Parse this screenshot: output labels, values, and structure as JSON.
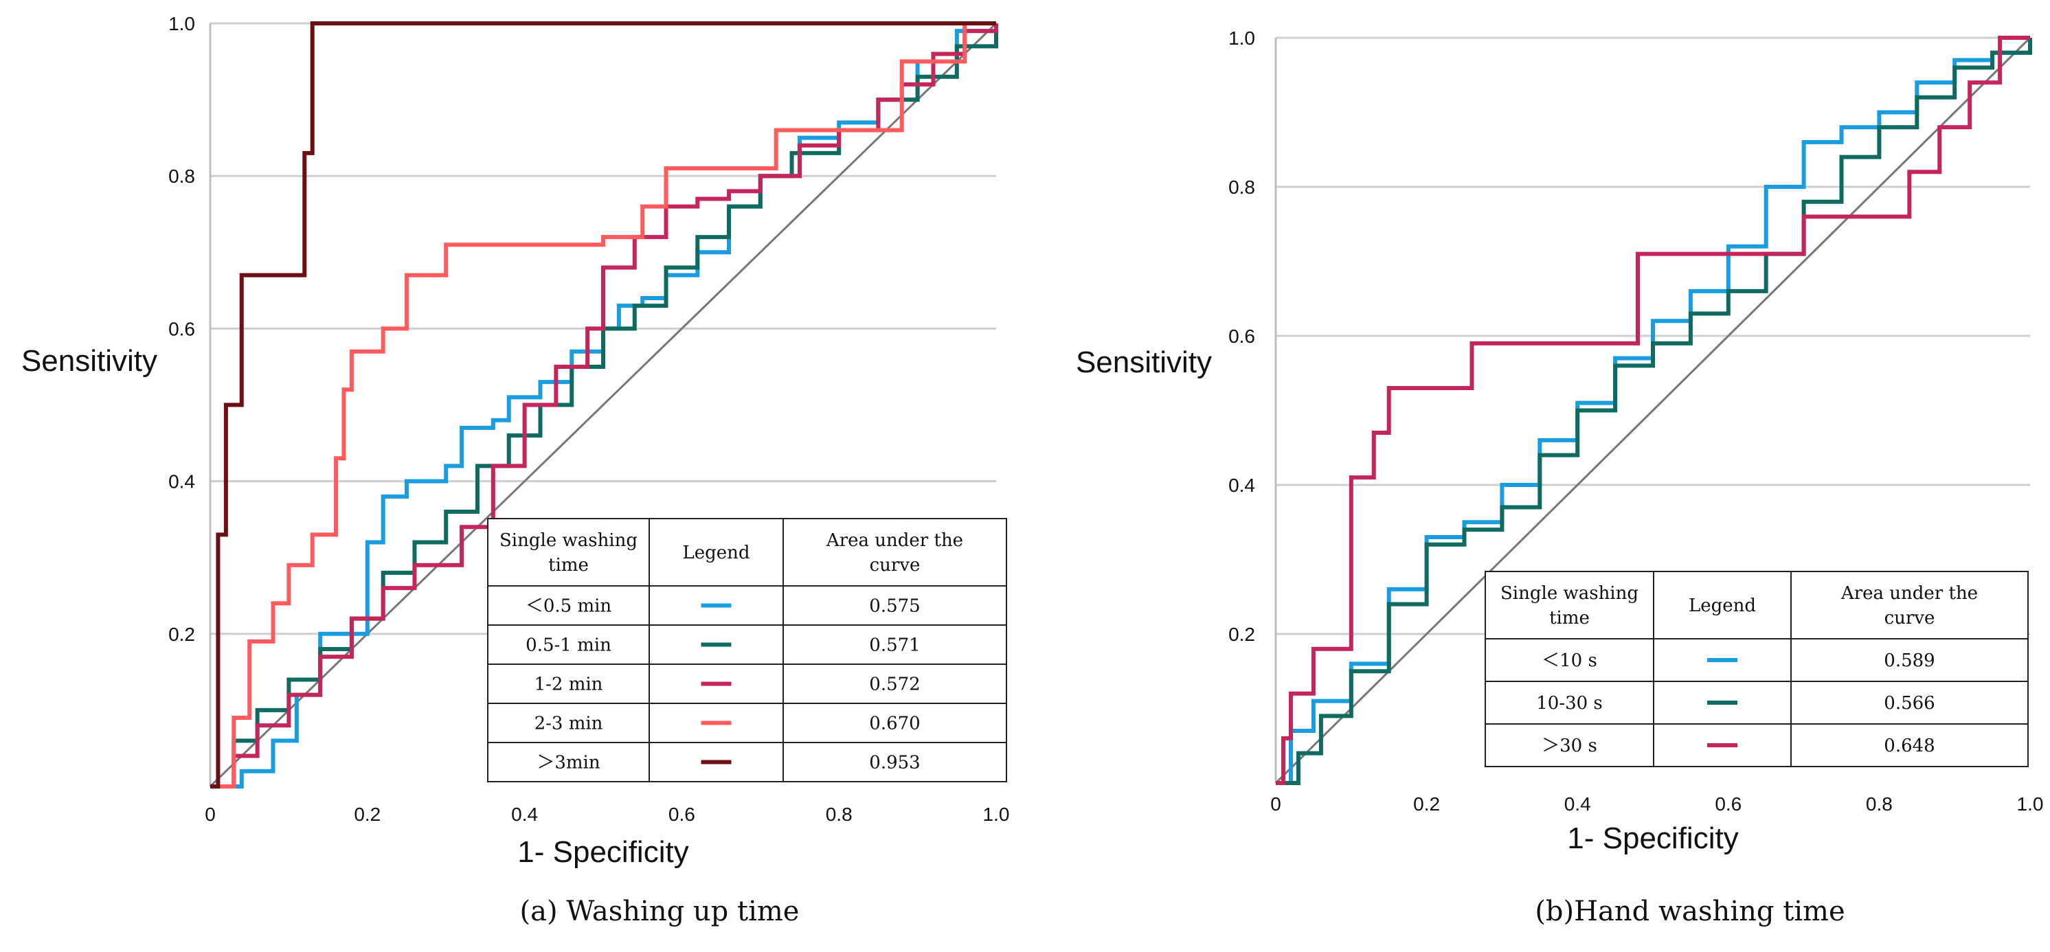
{
  "chart_data": [
    {
      "type": "line",
      "caption": "(a) Washing up time",
      "xlabel": "1- Specificity",
      "ylabel": "Sensitivity",
      "xlim": [
        0,
        1
      ],
      "ylim": [
        0,
        1
      ],
      "xticks": [
        "0",
        "0.2",
        "0.4",
        "0.6",
        "0.8",
        "1.0"
      ],
      "yticks": [
        "0.2",
        "0.4",
        "0.6",
        "0.8",
        "1.0"
      ],
      "table": {
        "headers": [
          "Single washing time",
          "Legend",
          "Area under the curve"
        ],
        "rows": [
          {
            "label": "＜0.5 min",
            "auc": "0.575"
          },
          {
            "label": "0.5-1 min",
            "auc": "0.571"
          },
          {
            "label": "1-2 min",
            "auc": "0.572"
          },
          {
            "label": "2-3 min",
            "auc": "0.670"
          },
          {
            "label": "＞3min",
            "auc": "0.953"
          }
        ]
      },
      "series": [
        {
          "name": "<0.5 min",
          "color": "#1a9de0",
          "auc": 0.575,
          "x": [
            0,
            0.04,
            0.08,
            0.11,
            0.14,
            0.2,
            0.22,
            0.25,
            0.3,
            0.32,
            0.36,
            0.38,
            0.42,
            0.46,
            0.5,
            0.52,
            0.55,
            0.58,
            0.62,
            0.66,
            0.7,
            0.75,
            0.8,
            0.85,
            0.9,
            0.95,
            1.0
          ],
          "y": [
            0,
            0.02,
            0.06,
            0.12,
            0.2,
            0.32,
            0.38,
            0.4,
            0.42,
            0.47,
            0.48,
            0.51,
            0.53,
            0.57,
            0.6,
            0.63,
            0.64,
            0.67,
            0.7,
            0.76,
            0.8,
            0.85,
            0.87,
            0.9,
            0.95,
            0.99,
            1.0
          ]
        },
        {
          "name": "0.5-1 min",
          "color": "#0f6b60",
          "auc": 0.571,
          "x": [
            0,
            0.03,
            0.06,
            0.1,
            0.14,
            0.18,
            0.22,
            0.26,
            0.3,
            0.34,
            0.38,
            0.42,
            0.46,
            0.5,
            0.54,
            0.58,
            0.62,
            0.66,
            0.7,
            0.74,
            0.8,
            0.85,
            0.9,
            0.95,
            1.0
          ],
          "y": [
            0,
            0.06,
            0.1,
            0.14,
            0.18,
            0.22,
            0.28,
            0.32,
            0.36,
            0.42,
            0.46,
            0.5,
            0.55,
            0.6,
            0.63,
            0.68,
            0.72,
            0.76,
            0.8,
            0.83,
            0.86,
            0.9,
            0.93,
            0.97,
            1.0
          ]
        },
        {
          "name": "1-2 min",
          "color": "#c4265a",
          "auc": 0.572,
          "x": [
            0,
            0.03,
            0.06,
            0.1,
            0.14,
            0.18,
            0.22,
            0.26,
            0.3,
            0.32,
            0.36,
            0.4,
            0.44,
            0.48,
            0.5,
            0.54,
            0.58,
            0.62,
            0.66,
            0.7,
            0.75,
            0.8,
            0.85,
            0.88,
            0.92,
            0.96,
            1.0
          ],
          "y": [
            0,
            0.04,
            0.08,
            0.12,
            0.17,
            0.22,
            0.26,
            0.29,
            0.29,
            0.34,
            0.42,
            0.5,
            0.55,
            0.6,
            0.68,
            0.72,
            0.76,
            0.77,
            0.78,
            0.8,
            0.84,
            0.86,
            0.9,
            0.92,
            0.96,
            0.99,
            1.0
          ]
        },
        {
          "name": "2-3 min",
          "color": "#ff5a5e",
          "auc": 0.67,
          "x": [
            0,
            0.03,
            0.05,
            0.08,
            0.1,
            0.13,
            0.16,
            0.17,
            0.18,
            0.22,
            0.25,
            0.27,
            0.3,
            0.35,
            0.4,
            0.48,
            0.5,
            0.55,
            0.58,
            0.62,
            0.66,
            0.72,
            0.8,
            0.88,
            0.92,
            0.96,
            1.0
          ],
          "y": [
            0,
            0.09,
            0.19,
            0.24,
            0.29,
            0.33,
            0.43,
            0.52,
            0.57,
            0.6,
            0.67,
            0.67,
            0.71,
            0.71,
            0.71,
            0.71,
            0.72,
            0.76,
            0.81,
            0.81,
            0.81,
            0.86,
            0.86,
            0.95,
            0.95,
            1.0,
            1.0
          ]
        },
        {
          "name": ">3min",
          "color": "#6b0f12",
          "auc": 0.953,
          "x": [
            0,
            0.01,
            0.01,
            0.02,
            0.03,
            0.04,
            0.06,
            0.08,
            0.1,
            0.12,
            0.12,
            0.13,
            0.13,
            0.2,
            0.4,
            0.6,
            0.8,
            1.0
          ],
          "y": [
            0,
            0.17,
            0.33,
            0.5,
            0.5,
            0.67,
            0.67,
            0.67,
            0.67,
            0.67,
            0.83,
            0.83,
            1.0,
            1.0,
            1.0,
            1.0,
            1.0,
            1.0
          ]
        }
      ]
    },
    {
      "type": "line",
      "caption": "(b)Hand washing time",
      "xlabel": "1- Specificity",
      "ylabel": "Sensitivity",
      "xlim": [
        0,
        1
      ],
      "ylim": [
        0,
        1
      ],
      "xticks": [
        "0",
        "0.2",
        "0.4",
        "0.6",
        "0.8",
        "1.0"
      ],
      "yticks": [
        "0.2",
        "0.4",
        "0.6",
        "0.8",
        "1.0"
      ],
      "table": {
        "headers": [
          "Single washing time",
          "Legend",
          "Area under the curve"
        ],
        "rows": [
          {
            "label": "＜10 s",
            "auc": "0.589"
          },
          {
            "label": "10-30 s",
            "auc": "0.566"
          },
          {
            "label": "＞30 s",
            "auc": "0.648"
          }
        ]
      },
      "series": [
        {
          "name": "<10 s",
          "color": "#1a9de0",
          "auc": 0.589,
          "x": [
            0,
            0.02,
            0.05,
            0.1,
            0.15,
            0.2,
            0.25,
            0.3,
            0.35,
            0.4,
            0.45,
            0.5,
            0.55,
            0.6,
            0.65,
            0.7,
            0.75,
            0.8,
            0.85,
            0.9,
            0.95,
            1.0
          ],
          "y": [
            0,
            0.07,
            0.11,
            0.16,
            0.26,
            0.33,
            0.35,
            0.4,
            0.46,
            0.51,
            0.57,
            0.62,
            0.66,
            0.72,
            0.8,
            0.86,
            0.88,
            0.9,
            0.94,
            0.97,
            0.98,
            1.0
          ]
        },
        {
          "name": "10-30 s",
          "color": "#0f6b60",
          "auc": 0.566,
          "x": [
            0,
            0.03,
            0.06,
            0.1,
            0.15,
            0.2,
            0.25,
            0.3,
            0.35,
            0.4,
            0.45,
            0.5,
            0.55,
            0.6,
            0.65,
            0.7,
            0.75,
            0.8,
            0.85,
            0.9,
            0.95,
            1.0
          ],
          "y": [
            0,
            0.04,
            0.09,
            0.15,
            0.24,
            0.32,
            0.34,
            0.37,
            0.44,
            0.5,
            0.56,
            0.59,
            0.63,
            0.66,
            0.71,
            0.78,
            0.84,
            0.88,
            0.92,
            0.96,
            0.98,
            1.0
          ]
        },
        {
          "name": ">30 s",
          "color": "#c4265a",
          "auc": 0.648,
          "x": [
            0,
            0.01,
            0.02,
            0.05,
            0.1,
            0.1,
            0.13,
            0.15,
            0.2,
            0.25,
            0.26,
            0.35,
            0.45,
            0.48,
            0.48,
            0.55,
            0.65,
            0.7,
            0.7,
            0.78,
            0.84,
            0.84,
            0.88,
            0.92,
            0.96,
            1.0
          ],
          "y": [
            0,
            0.06,
            0.12,
            0.18,
            0.29,
            0.41,
            0.47,
            0.53,
            0.53,
            0.53,
            0.59,
            0.59,
            0.59,
            0.65,
            0.71,
            0.71,
            0.71,
            0.71,
            0.76,
            0.76,
            0.76,
            0.82,
            0.88,
            0.94,
            1.0,
            1.0
          ]
        }
      ]
    }
  ]
}
